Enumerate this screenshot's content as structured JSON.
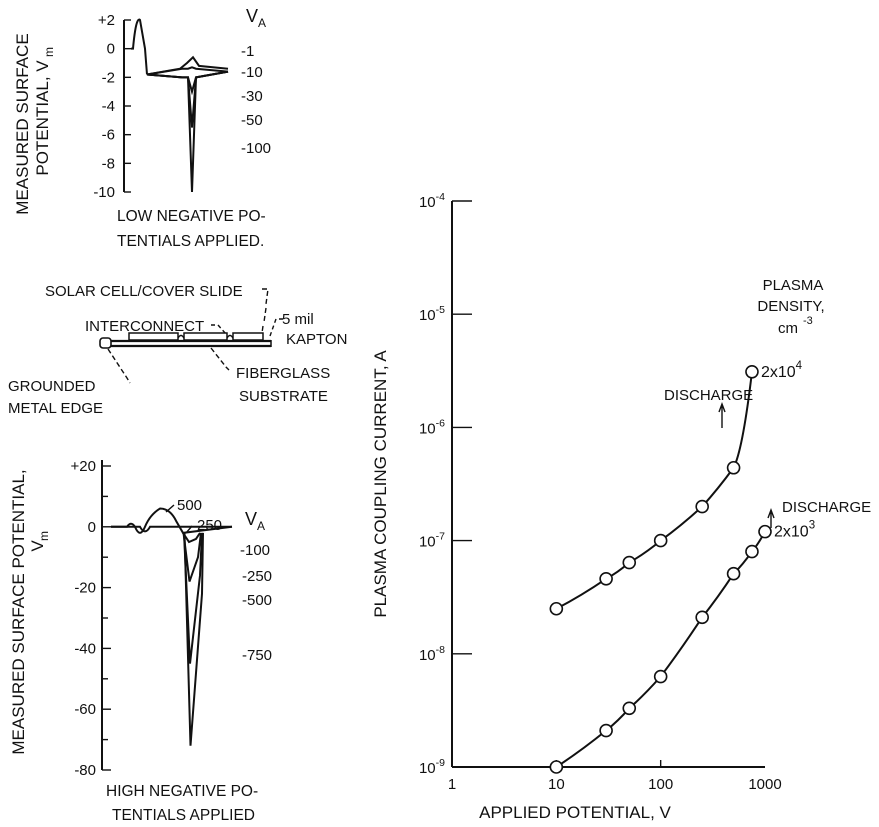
{
  "chart_data": [
    {
      "type": "line",
      "ylabel_lines": [
        "MEASURED SURFACE",
        "POTENTIAL, V"
      ],
      "ylabel_sub": "m",
      "caption_lines": [
        "LOW NEGATIVE PO-",
        "TENTIALS APPLIED."
      ],
      "y_ticks": [
        "+2",
        "0",
        "-2",
        "-4",
        "-6",
        "-8",
        "-10"
      ],
      "ylim": [
        -10,
        2
      ],
      "legend_title": "V",
      "legend_title_sub": "A",
      "series": [
        {
          "name": "-1",
          "dip": -0.6
        },
        {
          "name": "-10",
          "dip": -1.3
        },
        {
          "name": "-30",
          "dip": -3.0
        },
        {
          "name": "-50",
          "dip": -5.5
        },
        {
          "name": "-100",
          "dip": -10.0
        }
      ]
    },
    {
      "type": "line",
      "ylabel_lines": [
        "MEASURED SURFACE POTENTIAL,",
        "V"
      ],
      "ylabel_sub": "m",
      "caption_lines": [
        "HIGH NEGATIVE PO-",
        "TENTIALS APPLIED"
      ],
      "y_ticks": [
        "+20",
        "0",
        "-20",
        "-40",
        "-60",
        "-80"
      ],
      "ylim": [
        -80,
        20
      ],
      "legend_title": "V",
      "legend_title_sub": "A",
      "curve_labels": [
        "500",
        "250"
      ],
      "series": [
        {
          "name": "-100",
          "dip": -5
        },
        {
          "name": "-250",
          "dip": -18
        },
        {
          "name": "-500",
          "dip": -45
        },
        {
          "name": "-750",
          "dip": -72
        }
      ]
    },
    {
      "type": "scatter",
      "xlabel": "APPLIED POTENTIAL, V",
      "ylabel": "PLASMA COUPLING CURRENT, A",
      "x_scale": "log",
      "y_scale": "log",
      "x_ticks": [
        "1",
        "10",
        "100",
        "1000"
      ],
      "y_ticks": [
        "10^-4",
        "10^-5",
        "10^-6",
        "10^-7",
        "10^-8",
        "10^-9"
      ],
      "xlim": [
        1,
        1000
      ],
      "ylim": [
        1e-09,
        0.0001
      ],
      "legend_title_lines": [
        "PLASMA",
        "DENSITY,",
        "cm"
      ],
      "legend_title_sup": "-3",
      "annotation": "DISCHARGE",
      "series": [
        {
          "name": "2x10^4",
          "x": [
            10,
            30,
            50,
            100,
            250,
            500,
            750
          ],
          "y": [
            2.5e-08,
            4.6e-08,
            6.4e-08,
            1e-07,
            2e-07,
            4.4e-07,
            3.1e-06
          ]
        },
        {
          "name": "2x10^3",
          "x": [
            10,
            30,
            50,
            100,
            250,
            500,
            750,
            1000
          ],
          "y": [
            1e-09,
            2.1e-09,
            3.3e-09,
            6.3e-09,
            2.1e-08,
            5.1e-08,
            8e-08,
            1.2e-07
          ]
        }
      ]
    }
  ],
  "diagram": {
    "labels": {
      "solar_cell": "SOLAR CELL/COVER SLIDE",
      "interconnect": "INTERCONNECT",
      "kapton_1": "5 mil",
      "kapton_2": "KAPTON",
      "grounded_1": "GROUNDED",
      "grounded_2": "METAL EDGE",
      "fiberglass_1": "FIBERGLASS",
      "fiberglass_2": "SUBSTRATE"
    }
  }
}
